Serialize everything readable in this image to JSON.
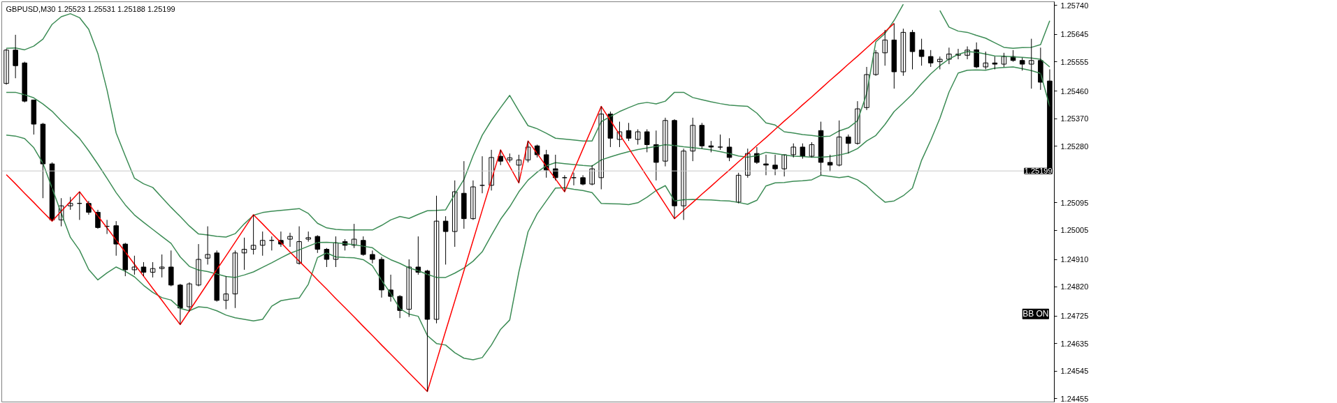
{
  "chart_data": {
    "type": "candlestick",
    "title": "GBPUSD,M30  1.25523 1.25531 1.25188 1.25199",
    "annotations": [
      "BB ON"
    ],
    "categories": [
      null,
      null,
      null,
      null,
      null,
      null,
      null,
      null,
      null,
      null,
      null,
      null,
      null,
      null,
      null,
      null,
      null,
      null,
      null,
      null,
      null,
      null,
      null,
      null,
      null,
      null,
      null,
      null,
      null,
      null,
      null,
      null,
      null,
      null,
      null,
      null,
      null,
      null,
      null,
      null,
      null,
      null,
      null,
      null,
      null,
      null,
      null,
      null,
      null,
      null,
      null,
      null,
      null,
      null,
      null,
      null,
      null,
      null,
      null,
      null,
      null,
      null,
      null,
      null,
      null,
      null,
      null,
      null,
      null,
      null,
      null,
      null,
      null,
      null,
      null,
      null,
      null,
      null,
      null,
      null,
      null,
      null,
      null,
      null,
      null,
      null,
      null,
      null,
      null,
      null,
      null,
      null,
      null,
      null,
      null,
      null,
      null,
      null,
      null,
      null,
      null,
      null,
      null,
      null,
      null,
      null,
      null,
      null,
      null,
      null,
      null,
      null,
      null,
      null,
      null
    ],
    "ohlc": [
      [
        1.25485,
        1.25598,
        1.25481,
        1.25594
      ],
      [
        1.25594,
        1.25644,
        1.25502,
        1.25543
      ],
      [
        1.25552,
        1.25556,
        1.25423,
        1.25427
      ],
      [
        1.25431,
        1.25431,
        1.25318,
        1.25352
      ],
      [
        1.25352,
        1.25356,
        1.2511,
        1.25222
      ],
      [
        1.25222,
        1.25227,
        1.25035,
        1.25039
      ],
      [
        1.25039,
        1.2511,
        1.25018,
        1.25085
      ],
      [
        1.25085,
        1.25114,
        1.25072,
        1.25093
      ],
      [
        1.25093,
        1.25131,
        1.25039,
        1.25093
      ],
      [
        1.25093,
        1.25101,
        1.25056,
        1.25064
      ],
      [
        1.25064,
        1.25072,
        1.2501,
        1.25014
      ],
      [
        1.25018,
        1.25039,
        1.24993,
        1.25018
      ],
      [
        1.2502,
        1.25035,
        1.24922,
        1.2496
      ],
      [
        1.2496,
        1.24964,
        1.24855,
        1.24876
      ],
      [
        1.24876,
        1.24922,
        1.2486,
        1.24885
      ],
      [
        1.24885,
        1.24901,
        1.24855,
        1.24868
      ],
      [
        1.24868,
        1.24901,
        1.24851,
        1.2488
      ],
      [
        1.2488,
        1.24926,
        1.24851,
        1.24885
      ],
      [
        1.24885,
        1.24939,
        1.24822,
        1.24826
      ],
      [
        1.24826,
        1.2483,
        1.24697,
        1.24751
      ],
      [
        1.24755,
        1.24835,
        1.24739,
        1.2483
      ],
      [
        1.24826,
        1.2496,
        1.24822,
        1.2491
      ],
      [
        1.24914,
        1.25018,
        1.24893,
        1.24926
      ],
      [
        1.24931,
        1.24939,
        1.24772,
        1.24776
      ],
      [
        1.24776,
        1.24855,
        1.24747,
        1.24797
      ],
      [
        1.24797,
        1.24939,
        1.24751,
        1.24931
      ],
      [
        1.24931,
        1.24981,
        1.24876,
        1.24943
      ],
      [
        1.24943,
        1.25056,
        1.24926,
        1.24956
      ],
      [
        1.24956,
        1.25001,
        1.24922,
        1.24972
      ],
      [
        1.24972,
        1.24985,
        1.24939,
        1.24972
      ],
      [
        1.24972,
        1.25001,
        1.24951,
        1.2496
      ],
      [
        1.24976,
        1.24997,
        1.24951,
        1.24985
      ],
      [
        1.24897,
        1.25018,
        1.24893,
        1.24968
      ],
      [
        1.24976,
        1.25001,
        1.24968,
        1.24981
      ],
      [
        1.24985,
        1.24989,
        1.24931,
        1.24943
      ],
      [
        1.24943,
        1.24947,
        1.24885,
        1.2491
      ],
      [
        1.2491,
        1.24985,
        1.24885,
        1.24964
      ],
      [
        1.24968,
        1.24976,
        1.24939,
        1.24956
      ],
      [
        1.24956,
        1.25026,
        1.24947,
        1.24976
      ],
      [
        1.24972,
        1.24985,
        1.24922,
        1.24926
      ],
      [
        1.24926,
        1.24939,
        1.24897,
        1.2491
      ],
      [
        1.2491,
        1.24918,
        1.24785,
        1.2481
      ],
      [
        1.2481,
        1.2486,
        1.24772,
        1.24789
      ],
      [
        1.24789,
        1.24793,
        1.24718,
        1.24743
      ],
      [
        1.24747,
        1.2491,
        1.24722,
        1.24885
      ],
      [
        1.24885,
        1.24985,
        1.2486,
        1.24868
      ],
      [
        1.24872,
        1.24876,
        1.24478,
        1.24714
      ],
      [
        1.24714,
        1.25118,
        1.24701,
        1.25035
      ],
      [
        1.25035,
        1.25051,
        1.24893,
        1.25001
      ],
      [
        1.25001,
        1.25168,
        1.24951,
        1.25131
      ],
      [
        1.25126,
        1.25231,
        1.2501,
        1.25043
      ],
      [
        1.25043,
        1.25168,
        1.25039,
        1.25147
      ],
      [
        1.25152,
        1.25247,
        1.25126,
        1.25152
      ],
      [
        1.25152,
        1.25268,
        1.25135,
        1.25243
      ],
      [
        1.25247,
        1.25268,
        1.25218,
        1.25231
      ],
      [
        1.25235,
        1.25256,
        1.25227,
        1.25242
      ],
      [
        1.25218,
        1.25252,
        1.2516,
        1.25235
      ],
      [
        1.25235,
        1.25297,
        1.25227,
        1.25277
      ],
      [
        1.25281,
        1.25285,
        1.25243,
        1.25252
      ],
      [
        1.25252,
        1.25268,
        1.25177,
        1.25202
      ],
      [
        1.25206,
        1.25252,
        1.25168,
        1.25177
      ],
      [
        1.25177,
        1.25185,
        1.25131,
        1.25177
      ],
      [
        1.25177,
        1.25193,
        1.25152,
        1.25177
      ],
      [
        1.25177,
        1.25185,
        1.25152,
        1.25156
      ],
      [
        1.25156,
        1.25218,
        1.25152,
        1.25206
      ],
      [
        1.25177,
        1.2541,
        1.25139,
        1.25385
      ],
      [
        1.25385,
        1.25393,
        1.25277,
        1.25306
      ],
      [
        1.25302,
        1.2536,
        1.25277,
        1.25327
      ],
      [
        1.25331,
        1.25356,
        1.25297,
        1.25306
      ],
      [
        1.25302,
        1.25335,
        1.25285,
        1.25327
      ],
      [
        1.25327,
        1.25335,
        1.2526,
        1.25285
      ],
      [
        1.25285,
        1.25331,
        1.25168,
        1.25227
      ],
      [
        1.25231,
        1.25373,
        1.25214,
        1.25364
      ],
      [
        1.25364,
        1.25368,
        1.25043,
        1.25085
      ],
      [
        1.25085,
        1.25272,
        1.25039,
        1.25264
      ],
      [
        1.25264,
        1.25373,
        1.25231,
        1.25348
      ],
      [
        1.25348,
        1.25356,
        1.25272,
        1.25281
      ],
      [
        1.25281,
        1.25297,
        1.2526,
        1.25277
      ],
      [
        1.25277,
        1.25318,
        1.25268,
        1.25277
      ],
      [
        1.25277,
        1.25306,
        1.25231,
        1.25243
      ],
      [
        1.25097,
        1.25193,
        1.25093,
        1.25185
      ],
      [
        1.25185,
        1.25272,
        1.25177,
        1.25256
      ],
      [
        1.25256,
        1.25277,
        1.25222,
        1.25227
      ],
      [
        1.25222,
        1.25252,
        1.25185,
        1.25218
      ],
      [
        1.25218,
        1.25252,
        1.25185,
        1.25206
      ],
      [
        1.25206,
        1.25252,
        1.25181,
        1.25252
      ],
      [
        1.25252,
        1.25289,
        1.25243,
        1.25277
      ],
      [
        1.25277,
        1.25289,
        1.25239,
        1.25247
      ],
      [
        1.25247,
        1.25293,
        1.25243,
        1.25285
      ],
      [
        1.25331,
        1.2536,
        1.25185,
        1.25227
      ],
      [
        1.25227,
        1.25252,
        1.25197,
        1.25218
      ],
      [
        1.25218,
        1.25364,
        1.25214,
        1.2531
      ],
      [
        1.2531,
        1.25318,
        1.25256,
        1.25289
      ],
      [
        1.25289,
        1.25427,
        1.25285,
        1.25402
      ],
      [
        1.25406,
        1.25539,
        1.25398,
        1.25514
      ],
      [
        1.25514,
        1.25594,
        1.2551,
        1.25585
      ],
      [
        1.25585,
        1.2566,
        1.25543,
        1.25627
      ],
      [
        1.25627,
        1.25681,
        1.25468,
        1.25523
      ],
      [
        1.25523,
        1.25664,
        1.2551,
        1.25652
      ],
      [
        1.25652,
        1.2566,
        1.25531,
        1.25589
      ],
      [
        1.25594,
        1.25631,
        1.25543,
        1.25573
      ],
      [
        1.25573,
        1.25594,
        1.25539,
        1.25552
      ],
      [
        1.25556,
        1.25573,
        1.25531,
        1.25564
      ],
      [
        1.25564,
        1.25602,
        1.25548,
        1.25581
      ],
      [
        1.25577,
        1.25598,
        1.25564,
        1.25581
      ],
      [
        1.25577,
        1.25606,
        1.25564,
        1.25594
      ],
      [
        1.25595,
        1.25619,
        1.25535,
        1.25539
      ],
      [
        1.25539,
        1.25589,
        1.25531,
        1.25552
      ],
      [
        1.25552,
        1.25573,
        1.25531,
        1.25548
      ],
      [
        1.25548,
        1.25585,
        1.25539,
        1.25573
      ],
      [
        1.25573,
        1.25594,
        1.25556,
        1.2556
      ],
      [
        1.2556,
        1.25569,
        1.25527,
        1.25548
      ],
      [
        1.25548,
        1.25631,
        1.25468,
        1.2556
      ],
      [
        1.2556,
        1.25602,
        1.25464,
        1.25489
      ],
      [
        1.25493,
        1.25531,
        1.25188,
        1.25199
      ]
    ],
    "series": [
      {
        "type": "line",
        "color": "#3c8c55",
        "values": [
          1.256,
          1.25601,
          1.25595,
          1.25607,
          1.2563,
          1.25678,
          1.25703,
          1.25713,
          1.257,
          1.25662,
          1.25583,
          1.25464,
          1.25323,
          1.25248,
          1.25175,
          1.25157,
          1.25145,
          1.25112,
          1.2508,
          1.2505,
          1.25019,
          1.24993,
          1.2499,
          1.24985,
          1.24983,
          1.24994,
          1.25026,
          1.25054,
          1.25063,
          1.25067,
          1.2507,
          1.25073,
          1.25076,
          1.2506,
          1.25028,
          1.25013,
          1.25008,
          1.25006,
          1.25006,
          1.25006,
          1.25006,
          1.25021,
          1.25039,
          1.2505,
          1.25044,
          1.25057,
          1.25069,
          1.2507,
          1.25072,
          1.25123,
          1.25171,
          1.25249,
          1.25316,
          1.25364,
          1.25406,
          1.25446,
          1.25395,
          1.25347,
          1.25337,
          1.25322,
          1.25306,
          1.25303,
          1.253,
          1.25297,
          1.25297,
          1.2536,
          1.25377,
          1.25393,
          1.25406,
          1.25418,
          1.25423,
          1.25418,
          1.25427,
          1.25456,
          1.25456,
          1.25439,
          1.25432,
          1.25425,
          1.25419,
          1.25414,
          1.25412,
          1.2541,
          1.25388,
          1.25356,
          1.25349,
          1.25327,
          1.25323,
          1.25318,
          1.25315,
          1.25311,
          1.25313,
          1.2533,
          1.2534,
          1.25363,
          1.25452,
          1.25621,
          1.25648,
          1.25691,
          1.25744,
          null,
          null,
          null,
          1.25723,
          1.25669,
          1.25656,
          1.25652,
          1.25642,
          1.25633,
          1.25618,
          1.25603,
          1.256,
          1.25602,
          1.25603,
          1.25612,
          1.2569
        ]
      },
      {
        "type": "line",
        "color": "#3c8c55",
        "values": [
          1.25456,
          1.25456,
          1.25448,
          1.25438,
          1.25418,
          1.25394,
          1.25363,
          1.25334,
          1.25305,
          1.25265,
          1.25221,
          1.25175,
          1.25128,
          1.25088,
          1.25055,
          1.25031,
          1.25008,
          1.24985,
          1.24962,
          1.24918,
          1.24887,
          1.24875,
          1.2487,
          1.24862,
          1.24854,
          1.24851,
          1.24859,
          1.24869,
          1.24884,
          1.24899,
          1.24915,
          1.2493,
          1.24941,
          1.24953,
          1.24965,
          1.24966,
          1.24964,
          1.24961,
          1.24958,
          1.24953,
          1.24948,
          1.24925,
          1.24909,
          1.24897,
          1.24882,
          1.24873,
          1.24861,
          1.24851,
          1.24851,
          1.24865,
          1.24882,
          1.24904,
          1.24935,
          1.24989,
          1.25041,
          1.25082,
          1.25131,
          1.25169,
          1.25195,
          1.25216,
          1.25226,
          1.25223,
          1.2522,
          1.25217,
          1.25215,
          1.25235,
          1.25245,
          1.25254,
          1.25262,
          1.25269,
          1.25274,
          1.25279,
          1.25285,
          1.25282,
          1.25278,
          1.25275,
          1.25272,
          1.25268,
          1.25262,
          1.25256,
          1.25248,
          1.25244,
          1.25249,
          1.2526,
          1.25256,
          1.25251,
          1.25247,
          1.25246,
          1.25244,
          1.25244,
          1.25246,
          1.25251,
          1.25258,
          1.25272,
          1.25297,
          1.25315,
          1.25351,
          1.25393,
          1.25421,
          1.2545,
          1.25485,
          1.25516,
          1.25543,
          1.25565,
          1.2558,
          1.25589,
          1.25587,
          1.25581,
          1.25575,
          1.25574,
          1.25572,
          1.2557,
          1.25568,
          1.25564,
          1.25539
        ]
      },
      {
        "type": "line",
        "color": "#3c8c55",
        "values": [
          1.25316,
          1.25313,
          1.25305,
          1.25275,
          1.25224,
          1.25143,
          1.25061,
          1.24982,
          1.2494,
          1.24877,
          1.24843,
          1.24866,
          1.24885,
          1.24871,
          1.24853,
          1.24825,
          1.24802,
          1.24785,
          1.24777,
          1.2475,
          1.24742,
          1.24755,
          1.24752,
          1.24742,
          1.24728,
          1.24719,
          1.24714,
          1.24709,
          1.24714,
          1.24757,
          1.24775,
          1.2478,
          1.24784,
          1.24829,
          1.24916,
          1.24931,
          1.24918,
          1.24916,
          1.24915,
          1.24909,
          1.24889,
          1.24842,
          1.24798,
          1.24749,
          1.24731,
          1.24724,
          1.24661,
          1.24635,
          1.2463,
          1.24605,
          1.24587,
          1.24582,
          1.24589,
          1.2463,
          1.24681,
          1.24712,
          1.24869,
          1.25,
          1.25059,
          1.25101,
          1.25143,
          1.25144,
          1.25139,
          1.25135,
          1.25128,
          1.25093,
          1.25092,
          1.25091,
          1.25089,
          1.25095,
          1.25113,
          1.25135,
          1.25151,
          1.25101,
          1.25105,
          1.25106,
          1.25105,
          1.25104,
          1.25102,
          1.25101,
          1.25096,
          1.2509,
          1.25103,
          1.2515,
          1.2516,
          1.25161,
          1.25165,
          1.25167,
          1.2517,
          1.25185,
          1.25181,
          1.25177,
          1.25181,
          1.2517,
          1.2515,
          1.25122,
          1.25097,
          1.25101,
          1.25118,
          1.25143,
          1.25234,
          1.25299,
          1.25371,
          1.25457,
          1.25519,
          1.25528,
          1.25529,
          1.25528,
          1.25535,
          1.25537,
          1.25539,
          1.25533,
          1.25527,
          1.25518,
          1.2541
        ]
      },
      {
        "type": "line",
        "color": "#ff0000",
        "values": [
          1.25187,
          1.25157,
          1.25126,
          1.25096,
          1.25065,
          1.25035,
          1.25067,
          1.25099,
          1.25131,
          1.25092,
          1.25052,
          1.25013,
          1.24973,
          1.24934,
          1.24894,
          1.24855,
          1.24815,
          1.24776,
          1.24736,
          1.24697,
          1.24742,
          1.24787,
          1.24832,
          1.24877,
          1.24921,
          1.24966,
          1.25011,
          1.25056,
          1.25026,
          1.24995,
          1.24965,
          1.24934,
          1.24904,
          1.24874,
          1.24843,
          1.24813,
          1.24782,
          1.24752,
          1.24722,
          1.24691,
          1.24661,
          1.2463,
          1.246,
          1.2457,
          1.24539,
          1.24509,
          1.24478,
          1.24577,
          1.24676,
          1.24774,
          1.24873,
          1.24972,
          1.25071,
          1.25169,
          1.25268,
          1.25214,
          1.2516,
          1.25297,
          1.25256,
          1.25214,
          1.25173,
          1.25131,
          1.25201,
          1.25271,
          1.2534,
          1.2541,
          1.25364,
          1.25318,
          1.25273,
          1.25227,
          1.25181,
          1.25135,
          1.25089,
          1.25043,
          1.2507,
          1.25096,
          1.25123,
          1.25149,
          1.25176,
          1.25202,
          1.25229,
          1.25255,
          1.25282,
          1.25308,
          1.25335,
          1.25362,
          1.25388,
          1.25415,
          1.25441,
          1.25468,
          1.25495,
          1.25521,
          1.25548,
          1.25574,
          1.25601,
          1.25628,
          1.25654,
          1.25681,
          null,
          null,
          null,
          null,
          null,
          null,
          null,
          null,
          null,
          null,
          null,
          null,
          null,
          null,
          null,
          null,
          null
        ]
      }
    ],
    "ref_lines": [
      {
        "axis": "y",
        "value": 1.25199,
        "label": "1.25199",
        "color": "#c8c8c8"
      }
    ],
    "ylim": [
      1.24444,
      1.25752
    ],
    "yticks": [
      {
        "value": 1.2574,
        "label": "1.25740"
      },
      {
        "value": 1.25645,
        "label": "1.25645"
      },
      {
        "value": 1.25555,
        "label": "1.25555"
      },
      {
        "value": 1.2546,
        "label": "1.25460"
      },
      {
        "value": 1.2537,
        "label": "1.25370"
      },
      {
        "value": 1.2528,
        "label": "1.25280"
      },
      {
        "value": 1.25095,
        "label": "1.25095"
      },
      {
        "value": 1.25005,
        "label": "1.25005"
      },
      {
        "value": 1.2491,
        "label": "1.24910"
      },
      {
        "value": 1.2482,
        "label": "1.24820"
      },
      {
        "value": 1.24725,
        "label": "1.24725"
      },
      {
        "value": 1.24635,
        "label": "1.24635"
      },
      {
        "value": 1.24545,
        "label": "1.24545"
      },
      {
        "value": 1.24455,
        "label": "1.24455"
      }
    ],
    "tick_labels": "y",
    "grid": false
  }
}
